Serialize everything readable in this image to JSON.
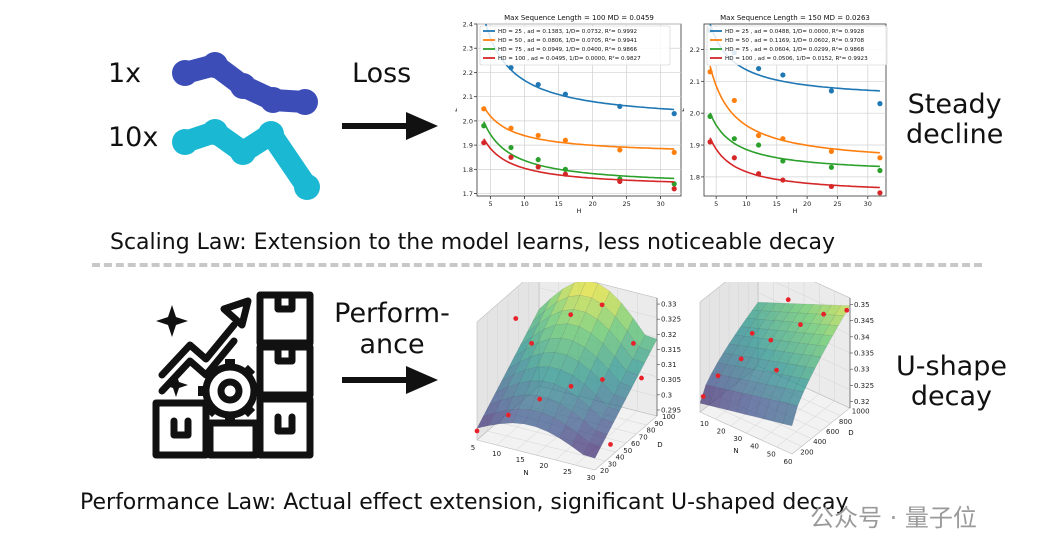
{
  "top": {
    "label_1x": "1x",
    "label_10x": "10x",
    "arrow_label": "Loss",
    "right_label_line1": "Steady",
    "right_label_line2": "decline",
    "caption": "Scaling Law: Extension to the model learns, less noticeable decay",
    "colors": {
      "line_1x": "#3d4db7",
      "line_10x": "#1bb8d3"
    }
  },
  "bottom": {
    "arrow_label_line1": "Perform-",
    "arrow_label_line2": "ance",
    "right_label_line1": "U-shape",
    "right_label_line2": "decay",
    "caption": "Performance Law: Actual effect extension, significant U-shaped decay",
    "icon": "growth-gear-boxes-icon"
  },
  "watermark": {
    "text": "公众号 · 量子位"
  },
  "chart_data": [
    {
      "type": "scatter",
      "title": "Max Sequence Length = 100 MD = 0.0459",
      "xlabel": "H",
      "ylabel": "L",
      "xlim": [
        3,
        33
      ],
      "ylim": [
        1.69,
        2.4
      ],
      "xticks": [
        5,
        10,
        15,
        20,
        25,
        30
      ],
      "yticks": [
        1.7,
        1.8,
        1.9,
        2.0,
        2.1,
        2.2,
        2.3,
        2.4
      ],
      "grid": true,
      "legend": "top-left",
      "series": [
        {
          "name": "HD = 25 , ad = 0.1383, 1/D= 0.0732, R²= 0.9992",
          "color": "#1f77b4",
          "x": [
            4,
            8,
            12,
            16,
            24,
            32
          ],
          "y": [
            2.42,
            2.22,
            2.15,
            2.11,
            2.06,
            2.03
          ]
        },
        {
          "name": "HD = 50 , ad = 0.0806, 1/D= 0.0705, R²= 0.9941",
          "color": "#ff7f0e",
          "x": [
            4,
            8,
            12,
            16,
            24,
            32
          ],
          "y": [
            2.05,
            1.97,
            1.94,
            1.92,
            1.88,
            1.87
          ]
        },
        {
          "name": "HD = 75 , ad = 0.0949, 1/D= 0.0400, R²= 0.9866",
          "color": "#2ca02c",
          "x": [
            4,
            8,
            12,
            16,
            24,
            32
          ],
          "y": [
            1.98,
            1.89,
            1.84,
            1.8,
            1.76,
            1.74
          ]
        },
        {
          "name": "HD = 100 , ad = 0.0495, 1/D= 0.0000, R²= 0.9827",
          "color": "#d62728",
          "x": [
            4,
            8,
            12,
            16,
            24,
            32
          ],
          "y": [
            1.91,
            1.85,
            1.81,
            1.78,
            1.75,
            1.72
          ]
        }
      ]
    },
    {
      "type": "scatter",
      "title": "Max Sequence Length = 150 MD = 0.0263",
      "xlabel": "H",
      "ylabel": "L",
      "xlim": [
        3,
        33
      ],
      "ylim": [
        1.74,
        2.28
      ],
      "xticks": [
        5,
        10,
        15,
        20,
        25,
        30
      ],
      "yticks": [
        1.8,
        1.9,
        2.0,
        2.1,
        2.2
      ],
      "grid": true,
      "legend": "top-left",
      "series": [
        {
          "name": "HD = 25 , ad = 0.0488, 1/D= 0.0000, R²= 0.9928",
          "color": "#1f77b4",
          "x": [
            4,
            8,
            12,
            16,
            24,
            32
          ],
          "y": [
            2.26,
            2.19,
            2.14,
            2.12,
            2.07,
            2.03
          ]
        },
        {
          "name": "HD = 50 , ad = 0.1169, 1/D= 0.0602, R²= 0.9708",
          "color": "#ff7f0e",
          "x": [
            4,
            8,
            12,
            16,
            24,
            32
          ],
          "y": [
            2.13,
            2.04,
            1.93,
            1.92,
            1.88,
            1.86
          ]
        },
        {
          "name": "HD = 75 , ad = 0.0604, 1/D= 0.0299, R²= 0.9868",
          "color": "#2ca02c",
          "x": [
            4,
            8,
            12,
            16,
            24,
            32
          ],
          "y": [
            1.99,
            1.92,
            1.9,
            1.85,
            1.83,
            1.82
          ]
        },
        {
          "name": "HD = 100 , ad = 0.0506, 1/D= 0.0152, R²= 0.9923",
          "color": "#d62728",
          "x": [
            4,
            8,
            12,
            16,
            24,
            32
          ],
          "y": [
            1.91,
            1.86,
            1.81,
            1.79,
            1.77,
            1.75
          ]
        }
      ]
    },
    {
      "type": "surface3d",
      "xlabel": "N",
      "ylabel": "D",
      "xticks": [
        5,
        10,
        15,
        20,
        25,
        30
      ],
      "yticks": [
        20,
        30,
        40,
        50,
        60,
        70,
        80,
        90,
        100
      ],
      "zticks": [
        0.295,
        0.3,
        0.305,
        0.31,
        0.315,
        0.32,
        0.325,
        0.33
      ],
      "xlim": [
        5,
        30
      ],
      "ylim": [
        20,
        100
      ],
      "zlim": [
        0.293,
        0.332
      ],
      "points": [
        {
          "x": 5,
          "y": 20,
          "z": 0.296
        },
        {
          "x": 10,
          "y": 30,
          "z": 0.301
        },
        {
          "x": 15,
          "y": 40,
          "z": 0.306
        },
        {
          "x": 20,
          "y": 50,
          "z": 0.31
        },
        {
          "x": 25,
          "y": 60,
          "z": 0.312
        },
        {
          "x": 30,
          "y": 80,
          "z": 0.31
        },
        {
          "x": 10,
          "y": 60,
          "z": 0.318
        },
        {
          "x": 15,
          "y": 80,
          "z": 0.325
        },
        {
          "x": 20,
          "y": 90,
          "z": 0.328
        },
        {
          "x": 5,
          "y": 70,
          "z": 0.322
        },
        {
          "x": 25,
          "y": 100,
          "z": 0.315
        },
        {
          "x": 30,
          "y": 40,
          "z": 0.297
        }
      ]
    },
    {
      "type": "surface3d",
      "xlabel": "N",
      "ylabel": "D",
      "xticks": [
        10,
        20,
        30,
        40,
        50,
        60
      ],
      "yticks": [
        200,
        400,
        600,
        800,
        1000
      ],
      "zticks": [
        0.32,
        0.325,
        0.33,
        0.335,
        0.34,
        0.345,
        0.35
      ],
      "xlim": [
        5,
        60
      ],
      "ylim": [
        150,
        1050
      ],
      "zlim": [
        0.318,
        0.352
      ],
      "points": [
        {
          "x": 5,
          "y": 200,
          "z": 0.322
        },
        {
          "x": 10,
          "y": 300,
          "z": 0.328
        },
        {
          "x": 20,
          "y": 400,
          "z": 0.334
        },
        {
          "x": 30,
          "y": 600,
          "z": 0.339
        },
        {
          "x": 40,
          "y": 800,
          "z": 0.343
        },
        {
          "x": 50,
          "y": 900,
          "z": 0.347
        },
        {
          "x": 60,
          "y": 1000,
          "z": 0.349
        },
        {
          "x": 15,
          "y": 700,
          "z": 0.336
        },
        {
          "x": 45,
          "y": 300,
          "z": 0.338
        },
        {
          "x": 25,
          "y": 1000,
          "z": 0.344
        }
      ]
    }
  ]
}
